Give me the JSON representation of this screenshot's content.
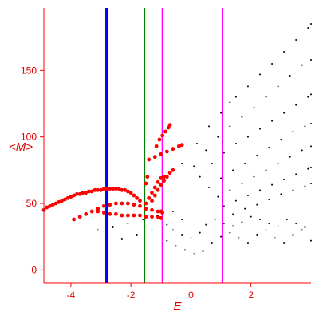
{
  "chart_data": {
    "type": "scatter",
    "title": "",
    "xlabel": "E",
    "ylabel": "<M>",
    "xlim": [
      -4.9,
      4.0
    ],
    "ylim": [
      -10,
      197
    ],
    "x_ticks": [
      -4,
      -2,
      0,
      2
    ],
    "x_tick_labels": [
      "-4",
      "-2",
      "0",
      "2"
    ],
    "y_ticks": [
      0,
      50,
      100,
      150
    ],
    "y_tick_labels": [
      "0",
      "50",
      "100",
      "150"
    ],
    "grid": false,
    "axis_color": "#ff0000",
    "vertical_lines": [
      {
        "x": -2.8,
        "color": "#0000ff",
        "width": "thick"
      },
      {
        "x": -1.55,
        "color": "#008000",
        "width": "thin"
      },
      {
        "x": -0.95,
        "color": "#ff00ff",
        "width": "thin"
      },
      {
        "x": 1.05,
        "color": "#ff00ff",
        "width": "thin"
      }
    ],
    "series": [
      {
        "color": "#ff0000",
        "points": [
          [
            -4.9,
            45
          ],
          [
            -4.8,
            47
          ],
          [
            -4.7,
            48
          ],
          [
            -4.6,
            49
          ],
          [
            -4.5,
            50
          ],
          [
            -4.4,
            51
          ],
          [
            -4.3,
            52
          ],
          [
            -4.2,
            53
          ],
          [
            -4.1,
            54
          ],
          [
            -4.0,
            55
          ],
          [
            -3.9,
            56
          ],
          [
            -3.8,
            57
          ],
          [
            -3.7,
            57
          ],
          [
            -3.6,
            58
          ],
          [
            -3.5,
            58
          ],
          [
            -3.4,
            59
          ],
          [
            -3.3,
            59
          ],
          [
            -3.2,
            60
          ],
          [
            -3.1,
            60
          ],
          [
            -3.0,
            60
          ],
          [
            -2.9,
            61
          ],
          [
            -2.8,
            61
          ],
          [
            -2.7,
            61
          ],
          [
            -2.6,
            61
          ],
          [
            -2.5,
            61
          ],
          [
            -2.4,
            61
          ],
          [
            -2.3,
            60
          ],
          [
            -2.2,
            60
          ],
          [
            -2.1,
            59
          ],
          [
            -2.0,
            58
          ],
          [
            -1.9,
            56
          ],
          [
            -1.8,
            54
          ],
          [
            -1.7,
            52
          ]
        ]
      },
      {
        "color": "#ff0000",
        "points": [
          [
            -3.9,
            38
          ],
          [
            -3.7,
            40
          ],
          [
            -3.5,
            42
          ],
          [
            -3.3,
            44
          ],
          [
            -3.1,
            46
          ],
          [
            -2.9,
            48
          ],
          [
            -2.7,
            49
          ],
          [
            -2.5,
            50
          ],
          [
            -2.3,
            50
          ],
          [
            -2.1,
            50
          ],
          [
            -1.9,
            49
          ],
          [
            -1.7,
            48
          ],
          [
            -1.5,
            46
          ],
          [
            -1.3,
            45
          ],
          [
            -1.1,
            44
          ],
          [
            -1.0,
            44
          ],
          [
            -0.95,
            43
          ]
        ]
      },
      {
        "color": "#ff0000",
        "points": [
          [
            -3.1,
            44
          ],
          [
            -2.9,
            43
          ],
          [
            -2.7,
            42
          ],
          [
            -2.5,
            42
          ],
          [
            -2.3,
            41
          ],
          [
            -2.1,
            41
          ],
          [
            -1.9,
            41
          ],
          [
            -1.7,
            41
          ],
          [
            -1.5,
            40
          ],
          [
            -1.3,
            40
          ],
          [
            -1.1,
            40
          ],
          [
            -1.0,
            39
          ]
        ]
      },
      {
        "color": "#ff0000",
        "points": [
          [
            -1.15,
            93
          ],
          [
            -1.05,
            98
          ],
          [
            -0.95,
            101
          ],
          [
            -0.85,
            104
          ],
          [
            -0.75,
            107
          ],
          [
            -0.7,
            109
          ]
        ]
      },
      {
        "color": "#ff0000",
        "points": [
          [
            -1.4,
            83
          ],
          [
            -1.2,
            85
          ],
          [
            -1.0,
            87
          ],
          [
            -0.8,
            89
          ],
          [
            -0.6,
            91
          ],
          [
            -0.4,
            93
          ],
          [
            -0.3,
            94
          ]
        ]
      },
      {
        "color": "#ff0000",
        "points": [
          [
            -1.3,
            52
          ],
          [
            -1.2,
            56
          ],
          [
            -1.1,
            60
          ],
          [
            -1.0,
            64
          ],
          [
            -0.9,
            67
          ],
          [
            -0.8,
            70
          ],
          [
            -0.7,
            73
          ],
          [
            -0.6,
            75
          ]
        ]
      },
      {
        "color": "#ff0000",
        "points": [
          [
            -1.5,
            50
          ],
          [
            -1.4,
            54
          ],
          [
            -1.3,
            58
          ],
          [
            -1.2,
            62
          ],
          [
            -1.1,
            66
          ],
          [
            -1.0,
            69
          ],
          [
            -0.9,
            70
          ]
        ]
      },
      {
        "color": "#ff0000",
        "points": [
          [
            -1.5,
            65
          ],
          [
            -1.45,
            70
          ]
        ]
      },
      {
        "color": "#000000",
        "points": [
          [
            -3.1,
            30
          ],
          [
            -2.6,
            32
          ],
          [
            -2.1,
            35
          ],
          [
            -1.6,
            38
          ],
          [
            -1.1,
            41
          ],
          [
            -0.6,
            44
          ]
        ]
      },
      {
        "color": "#000000",
        "points": [
          [
            -2.3,
            23
          ],
          [
            -1.8,
            26
          ],
          [
            -1.3,
            30
          ],
          [
            -0.8,
            34
          ],
          [
            -0.3,
            38
          ]
        ]
      },
      {
        "color": "#000000",
        "points": [
          [
            -0.3,
            80
          ],
          [
            0.2,
            95
          ],
          [
            0.6,
            108
          ],
          [
            1.0,
            118
          ],
          [
            1.3,
            126
          ],
          [
            1.5,
            130
          ],
          [
            1.9,
            138
          ],
          [
            2.3,
            147
          ],
          [
            2.7,
            155
          ],
          [
            3.1,
            164
          ],
          [
            3.5,
            173
          ],
          [
            3.9,
            182
          ],
          [
            4.0,
            185
          ]
        ]
      },
      {
        "color": "#000000",
        "points": [
          [
            0.1,
            78
          ],
          [
            0.5,
            90
          ],
          [
            0.9,
            100
          ],
          [
            1.3,
            108
          ],
          [
            1.7,
            115
          ],
          [
            2.1,
            122
          ],
          [
            2.5,
            130
          ],
          [
            2.9,
            138
          ],
          [
            3.3,
            146
          ],
          [
            3.7,
            154
          ],
          [
            4.0,
            158
          ]
        ]
      },
      {
        "color": "#000000",
        "points": [
          [
            0.3,
            70
          ],
          [
            0.7,
            80
          ],
          [
            1.1,
            88
          ],
          [
            1.5,
            95
          ],
          [
            1.9,
            100
          ],
          [
            2.3,
            106
          ],
          [
            2.7,
            112
          ],
          [
            3.1,
            118
          ],
          [
            3.5,
            124
          ],
          [
            3.9,
            130
          ],
          [
            4.0,
            132
          ]
        ]
      },
      {
        "color": "#000000",
        "points": [
          [
            0.6,
            62
          ],
          [
            1.0,
            69
          ],
          [
            1.4,
            75
          ],
          [
            1.8,
            80
          ],
          [
            2.2,
            86
          ],
          [
            2.6,
            92
          ],
          [
            3.0,
            98
          ],
          [
            3.4,
            104
          ],
          [
            3.8,
            108
          ],
          [
            4.0,
            110
          ]
        ]
      },
      {
        "color": "#000000",
        "points": [
          [
            0.9,
            55
          ],
          [
            1.3,
            60
          ],
          [
            1.7,
            65
          ],
          [
            2.1,
            70
          ],
          [
            2.5,
            75
          ],
          [
            2.9,
            80
          ],
          [
            3.3,
            85
          ],
          [
            3.7,
            90
          ],
          [
            4.0,
            93
          ]
        ]
      },
      {
        "color": "#000000",
        "points": [
          [
            1.1,
            48
          ],
          [
            1.5,
            52
          ],
          [
            1.9,
            56
          ],
          [
            2.3,
            60
          ],
          [
            2.7,
            64
          ],
          [
            3.1,
            68
          ],
          [
            3.5,
            72
          ],
          [
            3.9,
            76
          ],
          [
            4.0,
            77
          ]
        ]
      },
      {
        "color": "#000000",
        "points": [
          [
            1.4,
            42
          ],
          [
            1.8,
            46
          ],
          [
            2.2,
            49
          ],
          [
            2.6,
            53
          ],
          [
            3.0,
            57
          ],
          [
            3.4,
            60
          ],
          [
            3.8,
            63
          ],
          [
            4.0,
            65
          ]
        ]
      },
      {
        "color": "#000000",
        "points": [
          [
            -0.8,
            22
          ],
          [
            -0.5,
            18
          ],
          [
            -0.2,
            15
          ],
          [
            0.1,
            12
          ],
          [
            0.4,
            14
          ],
          [
            0.7,
            20
          ],
          [
            1.0,
            25
          ],
          [
            1.3,
            28
          ],
          [
            1.6,
            24
          ],
          [
            1.9,
            20
          ],
          [
            2.2,
            26
          ],
          [
            2.5,
            30
          ],
          [
            2.8,
            24
          ],
          [
            3.1,
            20
          ],
          [
            3.4,
            26
          ],
          [
            3.7,
            30
          ],
          [
            4.0,
            22
          ],
          [
            0.5,
            34
          ],
          [
            0.8,
            38
          ],
          [
            1.1,
            35
          ],
          [
            1.4,
            33
          ],
          [
            1.7,
            36
          ],
          [
            2.0,
            40
          ],
          [
            2.3,
            38
          ],
          [
            2.6,
            35
          ],
          [
            2.9,
            33
          ],
          [
            3.2,
            38
          ],
          [
            3.5,
            35
          ],
          [
            3.8,
            32
          ],
          [
            -0.6,
            30
          ],
          [
            -0.3,
            26
          ],
          [
            0.0,
            24
          ],
          [
            0.3,
            28
          ]
        ]
      }
    ]
  }
}
